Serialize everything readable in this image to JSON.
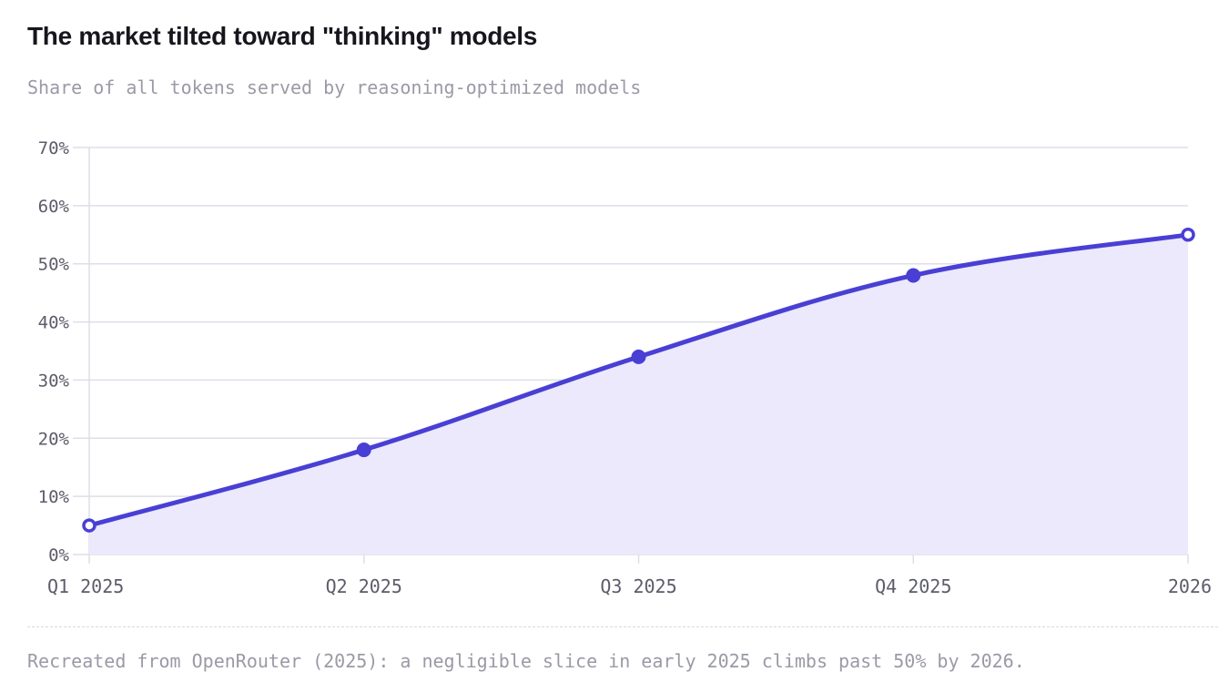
{
  "title": "The market tilted toward \"thinking\" models",
  "subtitle": "Share of all tokens served by reasoning-optimized models",
  "footnote": "Recreated from OpenRouter (2025): a negligible slice in early 2025 climbs past 50% by 2026.",
  "colors": {
    "line": "#4a3fd4",
    "fill": "#ebe9fb",
    "grid": "#dedee8",
    "tick_text": "#5c5c6a"
  },
  "chart_data": {
    "type": "area",
    "categories": [
      "Q1 2025",
      "Q2 2025",
      "Q3 2025",
      "Q4 2025",
      "2026"
    ],
    "values": [
      5,
      18,
      34,
      48,
      55
    ],
    "unit": "%",
    "ylim": [
      0,
      70
    ],
    "yticks": [
      "0%",
      "10%",
      "20%",
      "30%",
      "40%",
      "50%",
      "60%",
      "70%"
    ],
    "xlabel": "",
    "ylabel": "",
    "grid": true,
    "legend": "none"
  }
}
